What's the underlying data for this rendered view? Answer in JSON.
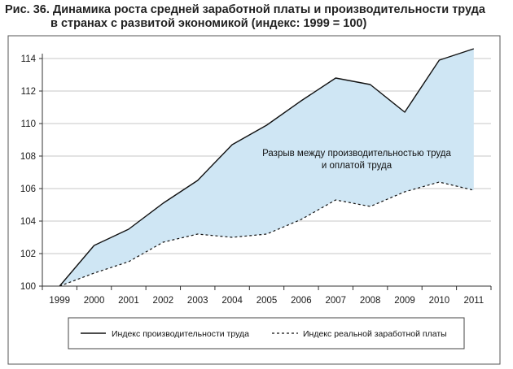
{
  "figure": {
    "title_line1": "Рис. 36. Динамика роста средней заработной платы и производительности труда",
    "title_line2": "в странах с развитой экономикой (индекс: 1999 = 100)"
  },
  "chart_data": {
    "type": "line",
    "x": [
      "1999",
      "2000",
      "2001",
      "2002",
      "2003",
      "2004",
      "2005",
      "2006",
      "2007",
      "2008",
      "2009",
      "2010",
      "2011"
    ],
    "series": [
      {
        "name": "Индекс производительности труда",
        "style": "solid",
        "values": [
          100,
          102.5,
          103.5,
          105.1,
          106.5,
          108.7,
          109.9,
          111.4,
          112.8,
          112.4,
          110.7,
          113.9,
          114.6
        ]
      },
      {
        "name": "Индекс реальной заработной платы",
        "style": "dashed",
        "values": [
          100,
          100.8,
          101.5,
          102.7,
          103.2,
          103.0,
          103.2,
          104.1,
          105.3,
          104.9,
          105.8,
          106.4,
          105.9
        ]
      }
    ],
    "annotation_line1": "Разрыв между производительностью труда",
    "annotation_line2": "и оплатой труда",
    "ylim": [
      100,
      114
    ],
    "yticks": [
      100,
      102,
      104,
      106,
      108,
      110,
      112,
      114
    ],
    "grid": true,
    "fill_between_color": "#cfe6f4",
    "line_color": "#111111",
    "legend_position": "bottom"
  }
}
